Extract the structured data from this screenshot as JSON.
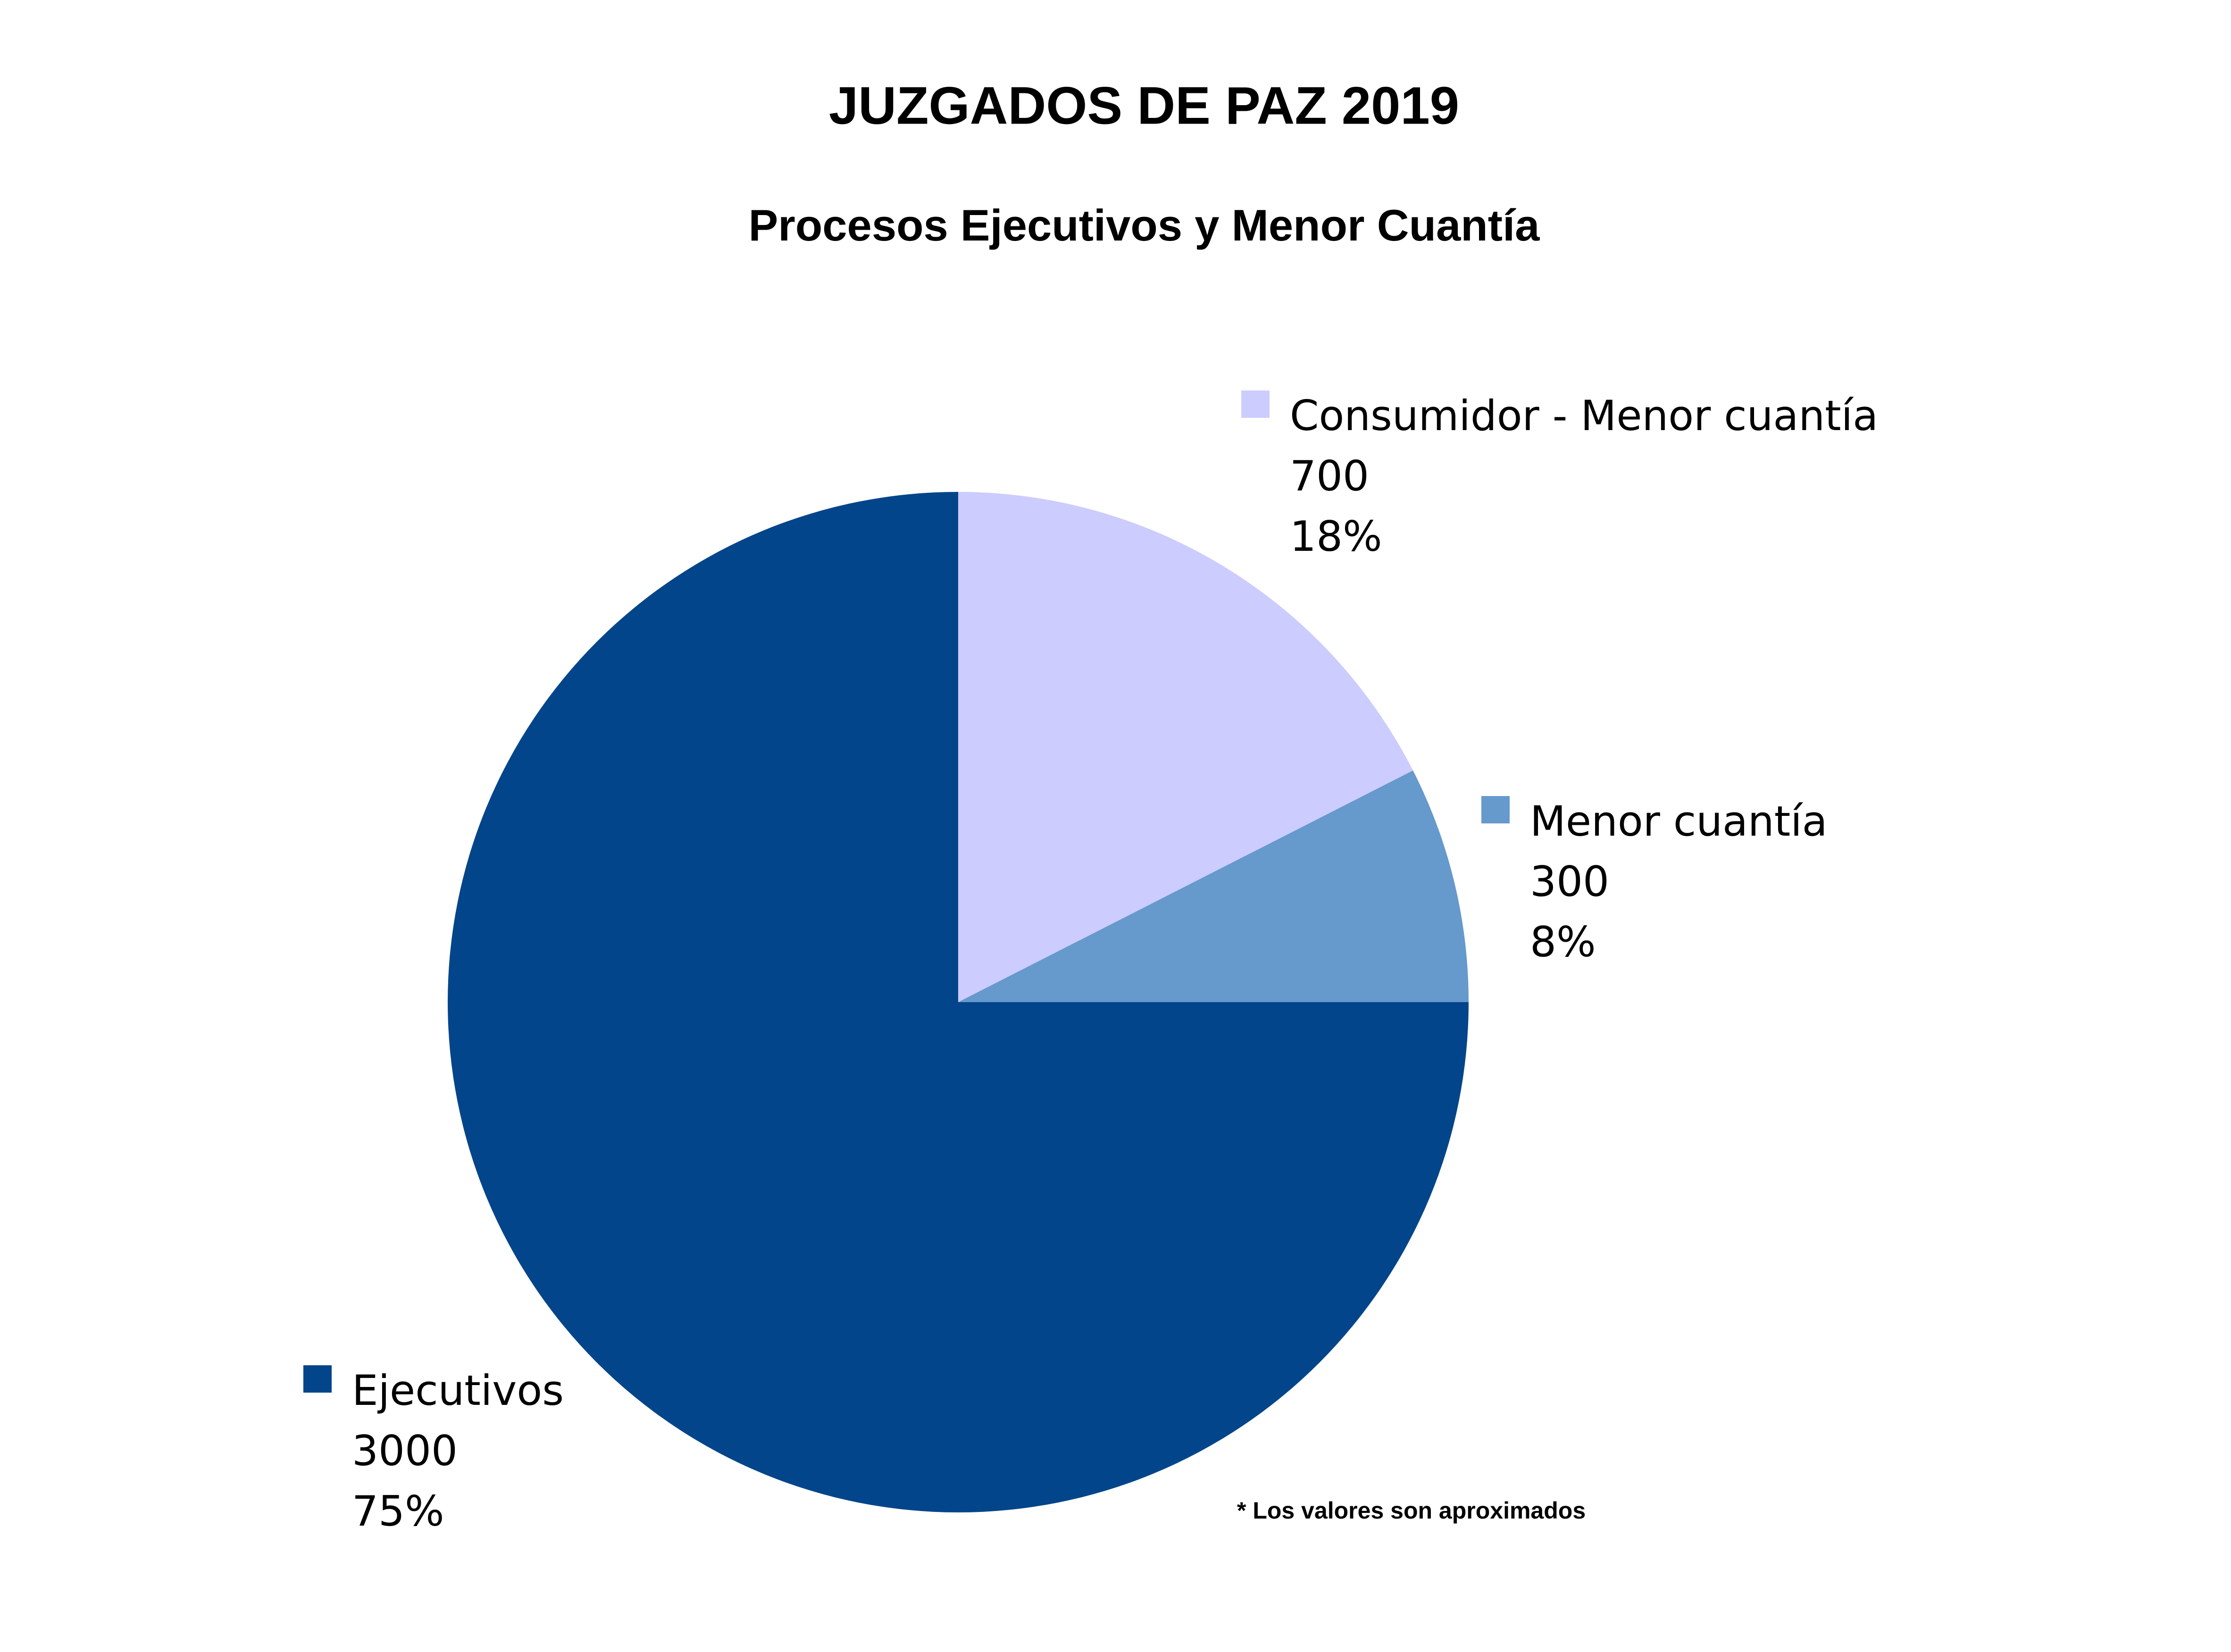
{
  "chart_data": {
    "type": "pie",
    "title": "JUZGADOS DE PAZ 2019",
    "subtitle": "Procesos Ejecutivos y Menor Cuantía",
    "categories": [
      "Consumidor - Menor cuantía",
      "Menor cuantía",
      "Ejecutivos"
    ],
    "values": [
      700,
      300,
      3000
    ],
    "percent_labels": [
      "18%",
      "8%",
      "75%"
    ],
    "colors": [
      "#ccccff",
      "#6699cc",
      "#03458a"
    ],
    "annotation": "* Los valores son aproximados"
  }
}
